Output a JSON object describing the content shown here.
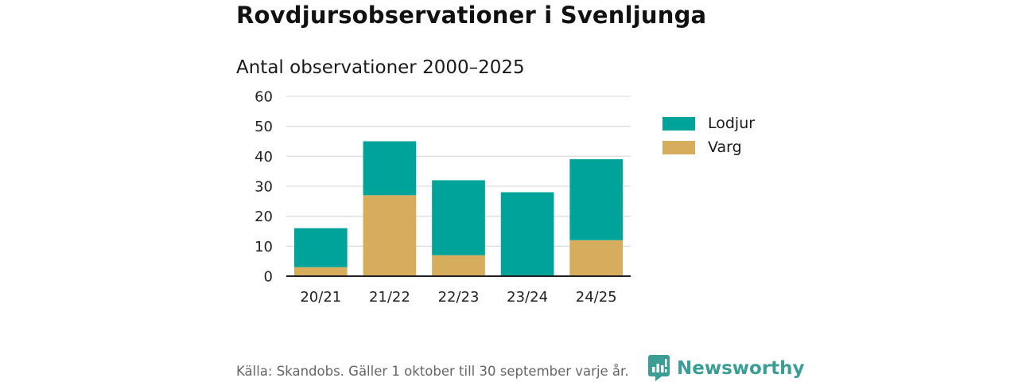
{
  "header": {
    "title": "Rovdjursobservationer i Svenljunga",
    "subtitle": "Antal observationer 2000–2025"
  },
  "chart_data": {
    "type": "bar",
    "stacked": true,
    "title": "Antal observationer 2000–2025",
    "xlabel": "",
    "ylabel": "",
    "categories": [
      "20/21",
      "21/22",
      "22/23",
      "23/24",
      "24/25"
    ],
    "series": [
      {
        "name": "Varg",
        "color": "#d6ad5d",
        "values": [
          3,
          27,
          7,
          0,
          12
        ]
      },
      {
        "name": "Lodjur",
        "color": "#00a399",
        "values": [
          13,
          18,
          25,
          28,
          27
        ]
      }
    ],
    "ylim": [
      0,
      60
    ],
    "yticks": [
      0,
      10,
      20,
      30,
      40,
      50,
      60
    ],
    "grid": true,
    "legend": [
      {
        "label": "Lodjur",
        "color": "#00a399"
      },
      {
        "label": "Varg",
        "color": "#d6ad5d"
      }
    ],
    "legend_position": "right"
  },
  "footer": {
    "source": "Källa: Skandobs. Gäller 1 oktober till 30 september varje år.",
    "brand": "Newsworthy",
    "brand_icon": "newsworthy-logo-icon"
  }
}
